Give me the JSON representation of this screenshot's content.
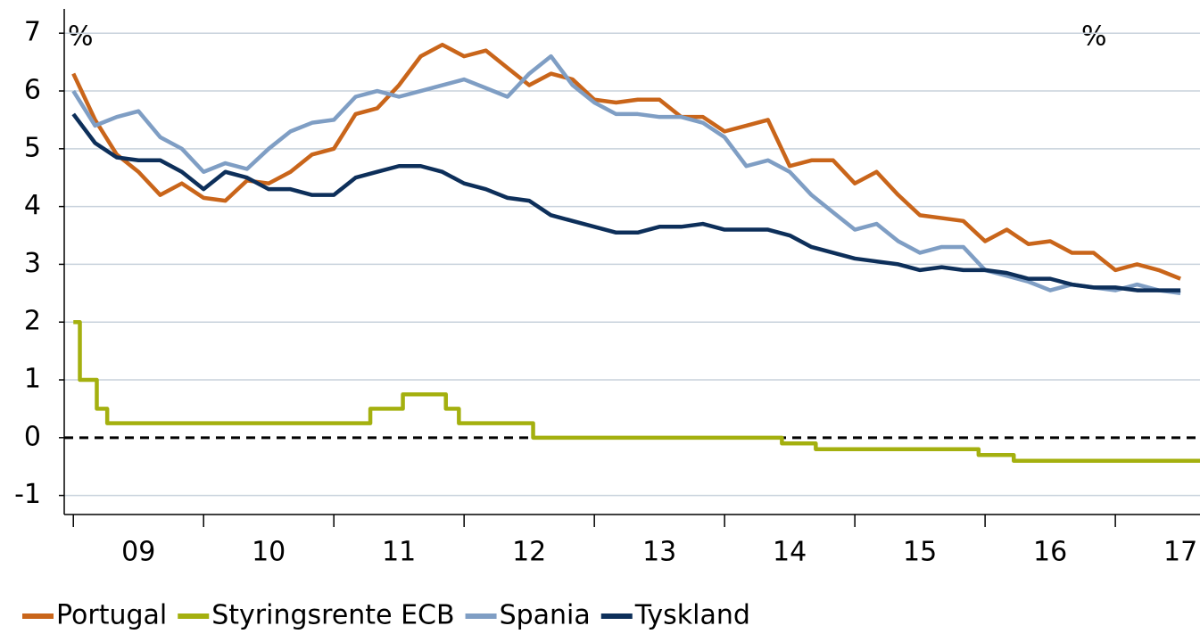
{
  "chart_data": {
    "type": "line",
    "annotations": [
      "%",
      "%"
    ],
    "x": [
      2009,
      2009.167,
      2009.333,
      2009.5,
      2009.667,
      2009.833,
      2010,
      2010.167,
      2010.333,
      2010.5,
      2010.667,
      2010.833,
      2011,
      2011.167,
      2011.333,
      2011.5,
      2011.667,
      2011.833,
      2012,
      2012.167,
      2012.333,
      2012.5,
      2012.667,
      2012.833,
      2013,
      2013.167,
      2013.333,
      2013.5,
      2013.667,
      2013.833,
      2014,
      2014.167,
      2014.333,
      2014.5,
      2014.667,
      2014.833,
      2015,
      2015.167,
      2015.333,
      2015.5,
      2015.667,
      2015.833,
      2016,
      2016.167,
      2016.333,
      2016.5,
      2016.667,
      2016.833,
      2017,
      2017.167,
      2017.333,
      2017.5
    ],
    "series": [
      {
        "name": "Portugal",
        "color": "#c9651a",
        "values": [
          6.3,
          5.5,
          4.9,
          4.6,
          4.2,
          4.4,
          4.15,
          4.1,
          4.45,
          4.4,
          4.6,
          4.9,
          5.0,
          5.6,
          5.7,
          6.1,
          6.6,
          6.8,
          6.6,
          6.7,
          6.4,
          6.1,
          6.3,
          6.2,
          5.85,
          5.8,
          5.85,
          5.85,
          5.55,
          5.55,
          5.3,
          5.4,
          5.5,
          4.7,
          4.8,
          4.8,
          4.4,
          4.6,
          4.2,
          3.85,
          3.8,
          3.75,
          3.4,
          3.6,
          3.35,
          3.4,
          3.2,
          3.2,
          2.9,
          3.0,
          2.9,
          2.75
        ]
      },
      {
        "name": "Styringsrente ECB",
        "color": "#a4b00f",
        "step": true,
        "x": [
          2009,
          2009.05,
          2009.18,
          2009.26,
          2011.28,
          2011.53,
          2011.86,
          2011.96,
          2012.53,
          2014.44,
          2014.7,
          2015.95,
          2016.22,
          2017.65
        ],
        "values": [
          2,
          1,
          0.5,
          0.25,
          0.5,
          0.75,
          0.5,
          0.25,
          0,
          -0.1,
          -0.2,
          -0.3,
          -0.4,
          -0.4
        ]
      },
      {
        "name": "Spania",
        "color": "#7f9ec4",
        "values": [
          6.0,
          5.4,
          5.55,
          5.65,
          5.2,
          5.0,
          4.6,
          4.75,
          4.65,
          5.0,
          5.3,
          5.45,
          5.5,
          5.9,
          6.0,
          5.9,
          6.0,
          6.1,
          6.2,
          6.05,
          5.9,
          6.3,
          6.6,
          6.1,
          5.8,
          5.6,
          5.6,
          5.55,
          5.55,
          5.45,
          5.2,
          4.7,
          4.8,
          4.6,
          4.2,
          3.9,
          3.6,
          3.7,
          3.4,
          3.2,
          3.3,
          3.3,
          2.9,
          2.8,
          2.7,
          2.55,
          2.65,
          2.6,
          2.55,
          2.65,
          2.55,
          2.5
        ]
      },
      {
        "name": "Tyskland",
        "color": "#0d2f5a",
        "values": [
          5.6,
          5.1,
          4.85,
          4.8,
          4.8,
          4.6,
          4.3,
          4.6,
          4.5,
          4.3,
          4.3,
          4.2,
          4.2,
          4.5,
          4.6,
          4.7,
          4.7,
          4.6,
          4.4,
          4.3,
          4.15,
          4.1,
          3.85,
          3.75,
          3.65,
          3.55,
          3.55,
          3.65,
          3.65,
          3.7,
          3.6,
          3.6,
          3.6,
          3.5,
          3.3,
          3.2,
          3.1,
          3.05,
          3.0,
          2.9,
          2.95,
          2.9,
          2.9,
          2.85,
          2.75,
          2.75,
          2.65,
          2.6,
          2.6,
          2.55,
          2.55,
          2.55
        ]
      }
    ],
    "xlim": [
      2008.93,
      2017.65
    ],
    "xticks": [
      {
        "value": 2009.5,
        "label": "09"
      },
      {
        "value": 2010.5,
        "label": "10"
      },
      {
        "value": 2011.5,
        "label": "11"
      },
      {
        "value": 2012.5,
        "label": "12"
      },
      {
        "value": 2013.5,
        "label": "13"
      },
      {
        "value": 2014.5,
        "label": "14"
      },
      {
        "value": 2015.5,
        "label": "15"
      },
      {
        "value": 2016.5,
        "label": "16"
      },
      {
        "value": 2017.5,
        "label": "17"
      }
    ],
    "ylim": [
      -1.33,
      7.42
    ],
    "yticks": [
      -1,
      0,
      1,
      2,
      3,
      4,
      5,
      6,
      7
    ],
    "grid": true,
    "legend": "bottom"
  }
}
